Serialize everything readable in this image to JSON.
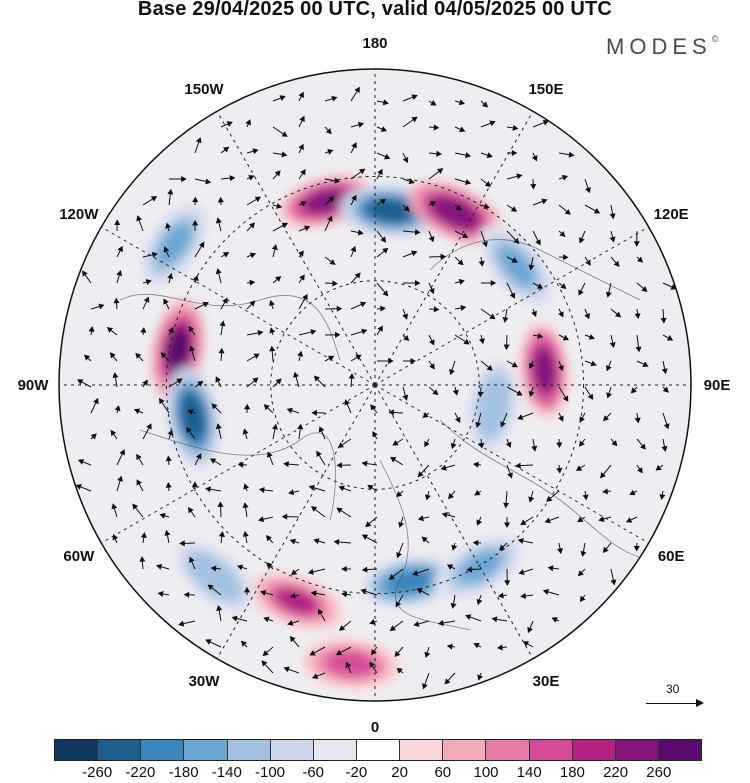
{
  "title": "Base 29/04/2025 00 UTC, valid 04/05/2025 00 UTC",
  "brand": "MODES",
  "brand_mark": "©",
  "longitude_labels": [
    "180",
    "150E",
    "120E",
    "90E",
    "60E",
    "30E",
    "0",
    "30W",
    "60W",
    "90W",
    "120W",
    "150W"
  ],
  "wind_reference": {
    "value": "30",
    "icon": "arrow-right-icon"
  },
  "colorbar": {
    "ticks": [
      "-260",
      "-220",
      "-180",
      "-140",
      "-100",
      "-60",
      "-20",
      "20",
      "60",
      "100",
      "140",
      "180",
      "220",
      "260"
    ],
    "colors": [
      "#0f3a5e",
      "#1c5f8f",
      "#3a86bd",
      "#6aa7d3",
      "#a3c2e2",
      "#cdd6ea",
      "#e6e6f0",
      "#ffffff",
      "#f9d6d8",
      "#f3aab8",
      "#e87aa8",
      "#d64b98",
      "#b42284",
      "#84137a",
      "#5a0a6e"
    ]
  },
  "chart_data": {
    "type": "heatmap",
    "projection": "north polar stereographic",
    "field": "anomaly with wind vectors",
    "value_range": [
      -260,
      260
    ],
    "anomaly_centers": [
      {
        "lon_label": "165W",
        "sign": "positive",
        "max": 220
      },
      {
        "lon_label": "175E",
        "sign": "negative",
        "max": -260
      },
      {
        "lon_label": "155E",
        "sign": "positive",
        "max": 240
      },
      {
        "lon_label": "130E",
        "sign": "negative",
        "max": -180
      },
      {
        "lon_label": "125W",
        "sign": "negative",
        "max": -180
      },
      {
        "lon_label": "100W",
        "sign": "positive",
        "max": 260
      },
      {
        "lon_label": "80W",
        "sign": "negative",
        "max": -260
      },
      {
        "lon_label": "95E",
        "sign": "positive",
        "max": 220
      },
      {
        "lon_label": "80E",
        "sign": "negative",
        "max": -140
      },
      {
        "lon_label": "20W",
        "sign": "positive",
        "max": 180
      },
      {
        "lon_label": "10E",
        "sign": "negative",
        "max": -220
      },
      {
        "lon_label": "30E",
        "sign": "negative",
        "max": -180
      },
      {
        "lon_label": "5W",
        "sign": "positive",
        "max": 140
      },
      {
        "lon_label": "40W",
        "sign": "negative",
        "max": -140
      }
    ]
  }
}
